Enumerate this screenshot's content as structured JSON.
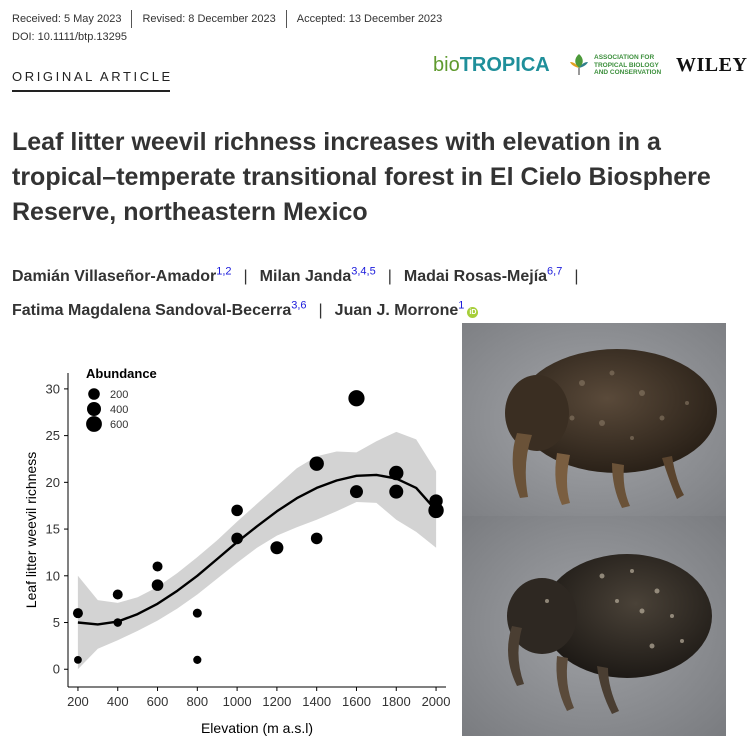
{
  "header": {
    "received": "Received: 5 May 2023",
    "revised": "Revised: 8 December 2023",
    "accepted": "Accepted: 13 December 2023",
    "doi": "DOI: 10.1111/btp.13295",
    "article_type": "ORIGINAL ARTICLE"
  },
  "logos": {
    "journal_bio": "bio",
    "journal_tropica": "TROPICA",
    "society_line1": "ASSOCIATION FOR",
    "society_line2": "TROPICAL BIOLOGY",
    "society_line3": "AND CONSERVATION",
    "publisher": "WILEY"
  },
  "paper": {
    "title": "Leaf litter weevil richness increases with elevation in a tropical–temperate transitional forest in El Cielo Biosphere Reserve, northeastern Mexico",
    "authors": [
      {
        "name": "Damián Villaseñor-Amador",
        "affil": "1,2"
      },
      {
        "name": "Milan Janda",
        "affil": "3,4,5"
      },
      {
        "name": "Madai Rosas-Mejía",
        "affil": "6,7"
      },
      {
        "name": "Fatima Magdalena Sandoval-Becerra",
        "affil": "3,6"
      },
      {
        "name": "Juan J. Morrone",
        "affil": "1"
      }
    ],
    "separator": "|"
  },
  "chart_data": {
    "type": "scatter",
    "xlabel": "Elevation (m a.s.l)",
    "ylabel": "Leaf litter weevil richness",
    "xlim": [
      200,
      2000
    ],
    "ylim": [
      0,
      30
    ],
    "x_ticks": [
      200,
      400,
      600,
      800,
      1000,
      1200,
      1400,
      1600,
      1800,
      2000
    ],
    "y_ticks": [
      0,
      5,
      10,
      15,
      20,
      25,
      30
    ],
    "legend": {
      "title": "Abundance",
      "placement": "top-left",
      "entries": [
        {
          "label": "200",
          "size": 200
        },
        {
          "label": "400",
          "size": 400
        },
        {
          "label": "600",
          "size": 600
        }
      ]
    },
    "points": [
      {
        "x": 200,
        "y": 6,
        "abundance": 100
      },
      {
        "x": 200,
        "y": 1,
        "abundance": 20
      },
      {
        "x": 400,
        "y": 8,
        "abundance": 100
      },
      {
        "x": 400,
        "y": 5,
        "abundance": 40
      },
      {
        "x": 600,
        "y": 11,
        "abundance": 100
      },
      {
        "x": 600,
        "y": 9,
        "abundance": 200
      },
      {
        "x": 800,
        "y": 6,
        "abundance": 60
      },
      {
        "x": 800,
        "y": 1,
        "abundance": 30
      },
      {
        "x": 1000,
        "y": 17,
        "abundance": 200
      },
      {
        "x": 1000,
        "y": 14,
        "abundance": 200
      },
      {
        "x": 1200,
        "y": 13,
        "abundance": 300
      },
      {
        "x": 1400,
        "y": 22,
        "abundance": 450
      },
      {
        "x": 1400,
        "y": 14,
        "abundance": 200
      },
      {
        "x": 1600,
        "y": 29,
        "abundance": 650
      },
      {
        "x": 1600,
        "y": 19,
        "abundance": 300
      },
      {
        "x": 1800,
        "y": 21,
        "abundance": 450
      },
      {
        "x": 1800,
        "y": 19,
        "abundance": 400
      },
      {
        "x": 2000,
        "y": 18,
        "abundance": 350
      },
      {
        "x": 2000,
        "y": 17,
        "abundance": 550
      }
    ],
    "fit_line": {
      "x": [
        200,
        300,
        400,
        500,
        600,
        700,
        800,
        900,
        1000,
        1100,
        1200,
        1300,
        1400,
        1500,
        1600,
        1700,
        1800,
        1900,
        2000
      ],
      "y": [
        5.0,
        4.8,
        5.1,
        5.9,
        7.0,
        8.4,
        10.0,
        11.8,
        13.6,
        15.3,
        16.9,
        18.3,
        19.4,
        20.2,
        20.7,
        20.8,
        20.4,
        19.4,
        17.0
      ]
    },
    "ci_band": {
      "x": [
        200,
        300,
        400,
        500,
        600,
        700,
        800,
        900,
        1000,
        1100,
        1200,
        1300,
        1400,
        1500,
        1600,
        1700,
        1800,
        1900,
        2000
      ],
      "upper": [
        10.0,
        7.4,
        7.1,
        7.7,
        8.8,
        10.3,
        12.0,
        13.8,
        15.8,
        17.7,
        19.6,
        21.5,
        22.8,
        23.3,
        23.2,
        24.4,
        25.4,
        24.6,
        21.2
      ],
      "lower": [
        0.0,
        2.2,
        3.1,
        4.1,
        5.2,
        6.5,
        8.0,
        9.7,
        11.4,
        13.0,
        14.3,
        15.2,
        16.0,
        16.9,
        17.9,
        17.8,
        16.0,
        14.7,
        13.0
      ]
    },
    "grid": false
  },
  "colors": {
    "band": "#d3d3d3",
    "points": "#000000",
    "author_affil": "#1a1adb",
    "journal_green": "#5f9a2e",
    "journal_teal": "#1f8f9a"
  }
}
